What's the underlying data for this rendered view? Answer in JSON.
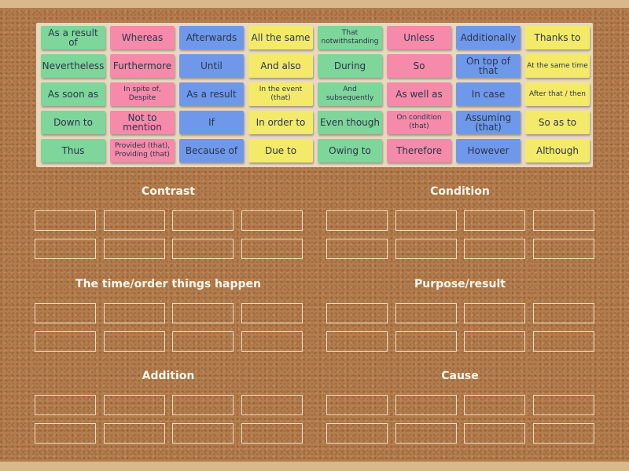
{
  "colors": {
    "green": "#7ed69a",
    "pink": "#f58aaa",
    "blue": "#6f98ea",
    "yellow": "#f4ea6a",
    "cork": "#b47d4e",
    "slot_border": "#f1dcc0"
  },
  "notes": [
    [
      "As a result of",
      "Whereas",
      "Afterwards",
      "All the same",
      "That notwithstanding",
      "Unless",
      "Additionally",
      "Thanks to"
    ],
    [
      "Nevertheless",
      "Furthermore",
      "Until",
      "And also",
      "During",
      "So",
      "On top of that",
      "At the same time"
    ],
    [
      "As soon as",
      "In spite of, Despite",
      "As a result",
      "In the event (that)",
      "And subsequently",
      "As well as",
      "In case",
      "After that / then"
    ],
    [
      "Down to",
      "Not to mention",
      "If",
      "In order to",
      "Even though",
      "On condition (that)",
      "Assuming (that)",
      "So as to"
    ],
    [
      "Thus",
      "Provided (that), Providing (that)",
      "Because of",
      "Due to",
      "Owing to",
      "Therefore",
      "However",
      "Although"
    ]
  ],
  "note_colors": [
    "green",
    "pink",
    "blue",
    "yellow",
    "green",
    "pink",
    "blue",
    "yellow"
  ],
  "groups": [
    {
      "title": "Contrast",
      "slots": 8
    },
    {
      "title": "Condition",
      "slots": 8
    },
    {
      "title": "The time/order things happen",
      "slots": 8
    },
    {
      "title": "Purpose/result",
      "slots": 8
    },
    {
      "title": "Addition",
      "slots": 8
    },
    {
      "title": "Cause",
      "slots": 8
    }
  ]
}
